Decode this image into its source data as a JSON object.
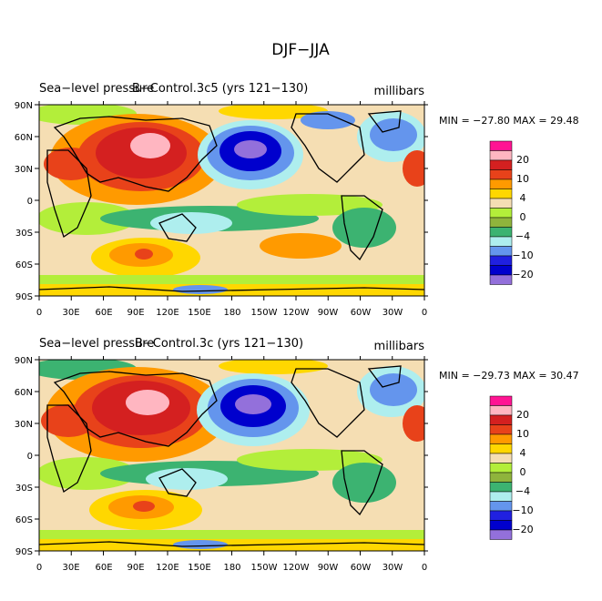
{
  "figure": {
    "title": "DJF−JJA"
  },
  "colorbar": {
    "labels": [
      "20",
      "10",
      "4",
      "0",
      "−4",
      "−10",
      "−20"
    ],
    "colors": [
      "#ff1493",
      "#ffb6c1",
      "#d42020",
      "#e8421a",
      "#ff9a00",
      "#ffd700",
      "#f5deb3",
      "#b3ee3a",
      "#8fb43c",
      "#3cb371",
      "#aeeeee",
      "#6495ed",
      "#2020e0",
      "#0000cd",
      "#9370db"
    ]
  },
  "axes": {
    "lat_labels": [
      "90N",
      "60N",
      "30N",
      "0",
      "30S",
      "60S",
      "90S"
    ],
    "lon_labels": [
      "0",
      "30E",
      "60E",
      "90E",
      "120E",
      "150E",
      "180",
      "150W",
      "120W",
      "90W",
      "60W",
      "30W",
      "0"
    ]
  },
  "panels": [
    {
      "left_title": "Sea−level pressure",
      "center_title": "B−Control.3c5 (yrs 121−130)",
      "right_title": "millibars",
      "minmax": "MIN = −27.80 MAX =  29.48"
    },
    {
      "left_title": "Sea−level pressure",
      "center_title": "B−Control.3c (yrs 121−130)",
      "right_title": "millibars",
      "minmax": "MIN = −29.73 MAX =  30.47"
    }
  ]
}
